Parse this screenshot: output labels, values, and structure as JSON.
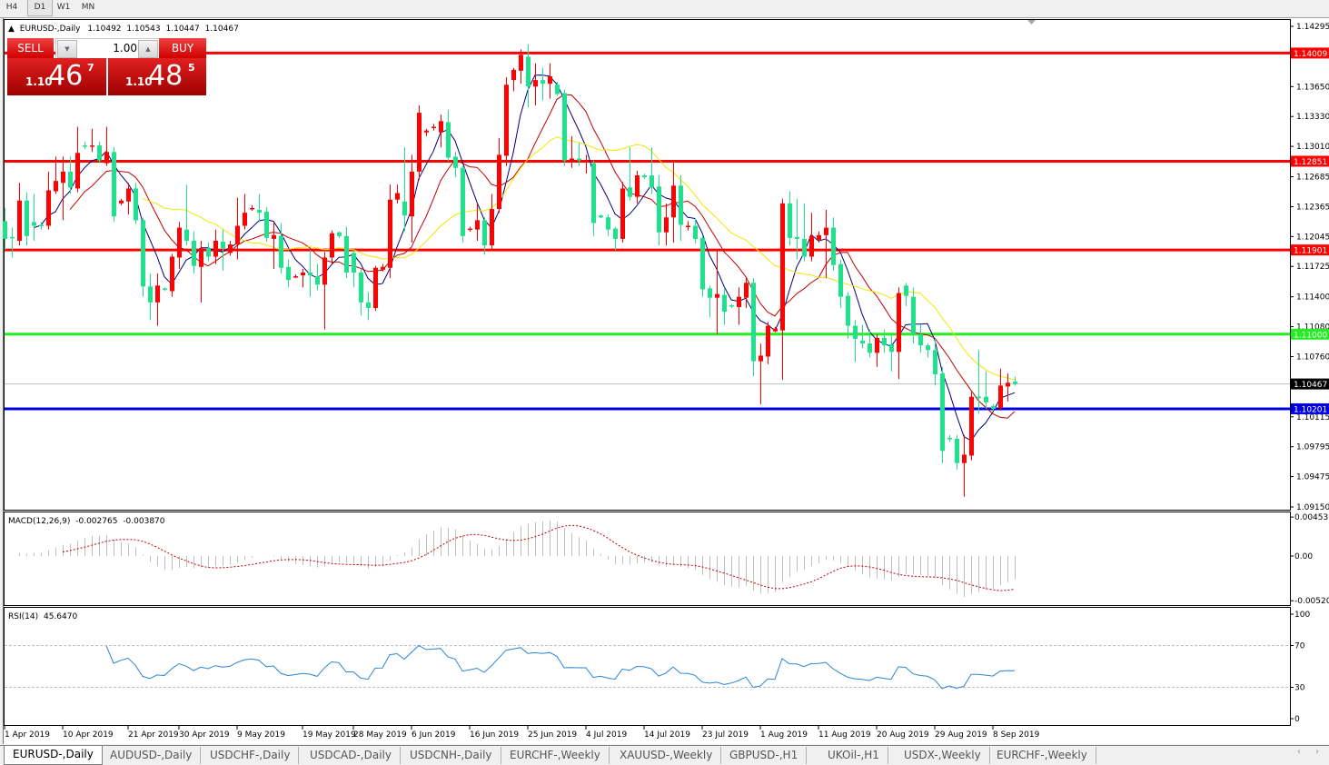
{
  "timeframes": [
    "H4",
    "D1",
    "W1",
    "MN"
  ],
  "active_timeframe": "D1",
  "header": {
    "arrow": "▲",
    "symbol": "EURUSD-,Daily",
    "open": "1.10492",
    "high": "1.10543",
    "low": "1.10447",
    "close": "1.10467"
  },
  "trade_panel": {
    "sell_label": "SELL",
    "buy_label": "BUY",
    "lot": "1.00",
    "lot_down": "▼",
    "lot_up": "▲",
    "sell_price": {
      "prefix": "1.10",
      "big": "46",
      "pip": "7"
    },
    "buy_price": {
      "prefix": "1.10",
      "big": "48",
      "pip": "5"
    }
  },
  "colors": {
    "bull": "#ff0000",
    "bear": "#1fe08c",
    "ma_fast": "#000080",
    "ma_mid": "#c00000",
    "ma_slow": "#f2e600",
    "macd_hist": "#c0c0c0",
    "macd_signal": "#c00000",
    "rsi": "#2a86d6"
  },
  "chart_data": {
    "type": "candlestick",
    "symbol": "EURUSD-",
    "timeframe": "Daily",
    "ylim": [
      1.0915,
      1.14295
    ],
    "price_ticks": [
      "1.14295",
      "1.13650",
      "1.13330",
      "1.13010",
      "1.12685",
      "1.12365",
      "1.12045",
      "1.11725",
      "1.11400",
      "1.11080",
      "1.10760",
      "1.10115",
      "1.09795",
      "1.09475",
      "1.09150"
    ],
    "date_labels": [
      "1 Apr 2019",
      "10 Apr 2019",
      "21 Apr 2019",
      "30 Apr 2019",
      "9 May 2019",
      "19 May 2019",
      "28 May 2019",
      "6 Jun 2019",
      "16 Jun 2019",
      "25 Jun 2019",
      "4 Jul 2019",
      "14 Jul 2019",
      "23 Jul 2019",
      "1 Aug 2019",
      "11 Aug 2019",
      "20 Aug 2019",
      "29 Aug 2019",
      "8 Sep 2019"
    ],
    "levels": [
      {
        "price": 1.14009,
        "label": "1.14009",
        "color": "#ff0000",
        "text_color": "#ffffff"
      },
      {
        "price": 1.12851,
        "label": "1.12851",
        "color": "#ff0000",
        "text_color": "#ffffff"
      },
      {
        "price": 1.11901,
        "label": "1.11901",
        "color": "#ff0000",
        "text_color": "#ffffff"
      },
      {
        "price": 1.11,
        "label": "1.11000",
        "color": "#22ee22",
        "text_color": "#ffffff"
      },
      {
        "price": 1.10201,
        "label": "1.10201",
        "color": "#0000dd",
        "text_color": "#ffffff"
      }
    ],
    "bid": {
      "price": 1.10467,
      "label": "1.10467"
    },
    "candles_ohlc": [
      [
        1.1221,
        1.1235,
        1.119,
        1.1202
      ],
      [
        1.1204,
        1.1214,
        1.1182,
        1.1203
      ],
      [
        1.12,
        1.1262,
        1.1195,
        1.1243
      ],
      [
        1.1243,
        1.1252,
        1.1195,
        1.1205
      ],
      [
        1.122,
        1.125,
        1.12,
        1.1216
      ],
      [
        1.1217,
        1.122,
        1.1212,
        1.1216
      ],
      [
        1.1216,
        1.1274,
        1.1212,
        1.1254
      ],
      [
        1.1253,
        1.129,
        1.125,
        1.1264
      ],
      [
        1.1262,
        1.129,
        1.1222,
        1.1274
      ],
      [
        1.1274,
        1.129,
        1.125,
        1.1257
      ],
      [
        1.1256,
        1.1322,
        1.1252,
        1.1294
      ],
      [
        1.1302,
        1.1306,
        1.1298,
        1.1301
      ],
      [
        1.1301,
        1.132,
        1.1295,
        1.1302
      ],
      [
        1.1302,
        1.1306,
        1.1283,
        1.1286
      ],
      [
        1.1283,
        1.1322,
        1.128,
        1.1295
      ],
      [
        1.1295,
        1.13,
        1.122,
        1.1226
      ],
      [
        1.124,
        1.1245,
        1.1238,
        1.1243
      ],
      [
        1.1242,
        1.1262,
        1.1228,
        1.1256
      ],
      [
        1.1256,
        1.1262,
        1.1218,
        1.1222
      ],
      [
        1.1222,
        1.1225,
        1.114,
        1.1151
      ],
      [
        1.1151,
        1.1165,
        1.1115,
        1.1134
      ],
      [
        1.1134,
        1.1165,
        1.1109,
        1.1152
      ],
      [
        1.1149,
        1.115,
        1.1146,
        1.1148
      ],
      [
        1.1146,
        1.1186,
        1.114,
        1.1183
      ],
      [
        1.1182,
        1.122,
        1.117,
        1.1214
      ],
      [
        1.1212,
        1.126,
        1.1195,
        1.12
      ],
      [
        1.12,
        1.121,
        1.1165,
        1.1173
      ],
      [
        1.1172,
        1.12,
        1.1134,
        1.1192
      ],
      [
        1.1192,
        1.1198,
        1.1178,
        1.1183
      ],
      [
        1.1183,
        1.1212,
        1.1175,
        1.12
      ],
      [
        1.1199,
        1.1212,
        1.1168,
        1.1192
      ],
      [
        1.1187,
        1.12,
        1.1184,
        1.1196
      ],
      [
        1.1196,
        1.1246,
        1.118,
        1.1216
      ],
      [
        1.1216,
        1.125,
        1.1212,
        1.123
      ],
      [
        1.1234,
        1.1238,
        1.1232,
        1.1235
      ],
      [
        1.1233,
        1.125,
        1.122,
        1.123
      ],
      [
        1.1231,
        1.1236,
        1.1199,
        1.1203
      ],
      [
        1.1202,
        1.1219,
        1.117,
        1.1206
      ],
      [
        1.1205,
        1.1219,
        1.1165,
        1.1171
      ],
      [
        1.1172,
        1.118,
        1.115,
        1.1158
      ],
      [
        1.1161,
        1.1164,
        1.116,
        1.1162
      ],
      [
        1.1163,
        1.117,
        1.115,
        1.1166
      ],
      [
        1.1166,
        1.119,
        1.114,
        1.1163
      ],
      [
        1.1162,
        1.1175,
        1.1147,
        1.1153
      ],
      [
        1.1153,
        1.1188,
        1.1105,
        1.1182
      ],
      [
        1.1182,
        1.1211,
        1.1175,
        1.1208
      ],
      [
        1.1209,
        1.121,
        1.1203,
        1.1205
      ],
      [
        1.1205,
        1.1215,
        1.116,
        1.1166
      ],
      [
        1.1187,
        1.119,
        1.115,
        1.1166
      ],
      [
        1.1166,
        1.117,
        1.112,
        1.1134
      ],
      [
        1.1134,
        1.1145,
        1.1115,
        1.1128
      ],
      [
        1.1128,
        1.1173,
        1.1125,
        1.1171
      ],
      [
        1.1169,
        1.1175,
        1.1167,
        1.1172
      ],
      [
        1.1171,
        1.126,
        1.116,
        1.1244
      ],
      [
        1.1244,
        1.126,
        1.124,
        1.1251
      ],
      [
        1.1242,
        1.13,
        1.121,
        1.1227
      ],
      [
        1.1226,
        1.1292,
        1.1198,
        1.1274
      ],
      [
        1.1274,
        1.1345,
        1.1265,
        1.1337
      ],
      [
        1.1316,
        1.132,
        1.1312,
        1.1318
      ],
      [
        1.1322,
        1.1325,
        1.1318,
        1.1322
      ],
      [
        1.1316,
        1.1335,
        1.13,
        1.1328
      ],
      [
        1.1327,
        1.134,
        1.1285,
        1.1289
      ],
      [
        1.129,
        1.1295,
        1.1268,
        1.1278
      ],
      [
        1.1278,
        1.128,
        1.1198,
        1.1205
      ],
      [
        1.1212,
        1.1215,
        1.121,
        1.1213
      ],
      [
        1.1212,
        1.124,
        1.12,
        1.1222
      ],
      [
        1.1222,
        1.1225,
        1.1185,
        1.1195
      ],
      [
        1.1195,
        1.125,
        1.119,
        1.1234
      ],
      [
        1.1234,
        1.131,
        1.123,
        1.1292
      ],
      [
        1.1291,
        1.1375,
        1.128,
        1.1367
      ],
      [
        1.1372,
        1.1385,
        1.136,
        1.1383
      ],
      [
        1.1382,
        1.1405,
        1.1368,
        1.1399
      ],
      [
        1.1397,
        1.141,
        1.1343,
        1.1365
      ],
      [
        1.1365,
        1.139,
        1.1345,
        1.1372
      ],
      [
        1.1372,
        1.1385,
        1.135,
        1.1368
      ],
      [
        1.1368,
        1.139,
        1.1352,
        1.1376
      ],
      [
        1.1367,
        1.137,
        1.1355,
        1.1357
      ],
      [
        1.1358,
        1.1362,
        1.128,
        1.1286
      ],
      [
        1.1284,
        1.1312,
        1.1278,
        1.1288
      ],
      [
        1.1288,
        1.1305,
        1.128,
        1.1286
      ],
      [
        1.1286,
        1.1292,
        1.1272,
        1.1286
      ],
      [
        1.1283,
        1.1286,
        1.1205,
        1.1219
      ],
      [
        1.1227,
        1.1228,
        1.1224,
        1.1225
      ],
      [
        1.1225,
        1.1228,
        1.1205,
        1.1212
      ],
      [
        1.1213,
        1.1215,
        1.119,
        1.1202
      ],
      [
        1.1202,
        1.1263,
        1.1198,
        1.1256
      ],
      [
        1.1257,
        1.13,
        1.1243,
        1.1247
      ],
      [
        1.1247,
        1.1275,
        1.124,
        1.127
      ],
      [
        1.127,
        1.1272,
        1.1266,
        1.1268
      ],
      [
        1.127,
        1.13,
        1.125,
        1.1257
      ],
      [
        1.1258,
        1.127,
        1.1195,
        1.1209
      ],
      [
        1.1209,
        1.124,
        1.1195,
        1.1225
      ],
      [
        1.1225,
        1.1286,
        1.1198,
        1.1259
      ],
      [
        1.1259,
        1.127,
        1.12,
        1.1217
      ],
      [
        1.1216,
        1.1221,
        1.1211,
        1.1216
      ],
      [
        1.1216,
        1.1224,
        1.1197,
        1.1202
      ],
      [
        1.1203,
        1.1205,
        1.114,
        1.1148
      ],
      [
        1.1149,
        1.1152,
        1.1118,
        1.1139
      ],
      [
        1.1139,
        1.119,
        1.11,
        1.1143
      ],
      [
        1.1142,
        1.115,
        1.111,
        1.1124
      ],
      [
        1.1131,
        1.1132,
        1.1128,
        1.113
      ],
      [
        1.1129,
        1.115,
        1.111,
        1.114
      ],
      [
        1.1139,
        1.116,
        1.1128,
        1.1155
      ],
      [
        1.1155,
        1.116,
        1.1055,
        1.1071
      ],
      [
        1.1071,
        1.109,
        1.1025,
        1.1077
      ],
      [
        1.1076,
        1.1113,
        1.1068,
        1.1109
      ],
      [
        1.1103,
        1.1108,
        1.1102,
        1.1106
      ],
      [
        1.1104,
        1.1245,
        1.1051,
        1.124
      ],
      [
        1.124,
        1.1253,
        1.1195,
        1.1203
      ],
      [
        1.1204,
        1.1245,
        1.118,
        1.1202
      ],
      [
        1.1202,
        1.124,
        1.1178,
        1.1183
      ],
      [
        1.1183,
        1.123,
        1.1178,
        1.1205
      ],
      [
        1.1201,
        1.121,
        1.1198,
        1.1206
      ],
      [
        1.1206,
        1.1233,
        1.116,
        1.1214
      ],
      [
        1.1214,
        1.1225,
        1.1168,
        1.1174
      ],
      [
        1.1175,
        1.118,
        1.1128,
        1.114
      ],
      [
        1.1141,
        1.1145,
        1.1095,
        1.1109
      ],
      [
        1.1109,
        1.1115,
        1.107,
        1.1095
      ],
      [
        1.1093,
        1.111,
        1.1085,
        1.109
      ],
      [
        1.109,
        1.1105,
        1.1075,
        1.108
      ],
      [
        1.108,
        1.11,
        1.1065,
        1.1096
      ],
      [
        1.1096,
        1.1105,
        1.108,
        1.1088
      ],
      [
        1.1089,
        1.11,
        1.106,
        1.1081
      ],
      [
        1.1081,
        1.115,
        1.1052,
        1.1144
      ],
      [
        1.1152,
        1.1155,
        1.113,
        1.1141
      ],
      [
        1.114,
        1.115,
        1.109,
        1.11
      ],
      [
        1.11,
        1.111,
        1.108,
        1.1088
      ],
      [
        1.1088,
        1.109,
        1.1075,
        1.1083
      ],
      [
        1.1083,
        1.1095,
        1.1045,
        1.1057
      ],
      [
        1.1058,
        1.1065,
        1.0962,
        1.0975
      ],
      [
        1.0989,
        1.0992,
        1.0985,
        1.0988
      ],
      [
        1.0988,
        1.0992,
        1.0955,
        1.0962
      ],
      [
        1.0962,
        1.0992,
        1.0926,
        1.0971
      ],
      [
        1.097,
        1.1038,
        1.0965,
        1.1033
      ],
      [
        1.1033,
        1.1083,
        1.1015,
        1.1032
      ],
      [
        1.1033,
        1.106,
        1.102,
        1.1027
      ],
      [
        1.1023,
        1.1025,
        1.1018,
        1.102
      ],
      [
        1.1021,
        1.1063,
        1.1018,
        1.1045
      ],
      [
        1.1044,
        1.1058,
        1.1028,
        1.1048
      ],
      [
        1.10492,
        1.10543,
        1.10447,
        1.10467
      ]
    ],
    "macd": {
      "label": "MACD(12,26,9)",
      "main": "-0.002765",
      "signal": "-0.003870",
      "ticks": [
        "0.004536",
        "0.00",
        "-0.005205"
      ]
    },
    "rsi": {
      "label": "RSI(14)",
      "value": "45.6470",
      "ticks": [
        "100",
        "70",
        "30",
        "0"
      ]
    }
  },
  "tabs": [
    "EURUSD-,Daily",
    "AUDUSD-,Daily",
    "USDCHF-,Daily",
    "USDCAD-,Daily",
    "USDCNH-,Daily",
    "EURCHF-,Weekly",
    "XAUUSD-,Weekly",
    "GBPUSD-,H1",
    "UKOil-,H1",
    "USDX-,Weekly",
    "EURCHF-,Weekly"
  ],
  "active_tab": 0,
  "tab_scroll": {
    "left": "‹",
    "right": "›"
  }
}
